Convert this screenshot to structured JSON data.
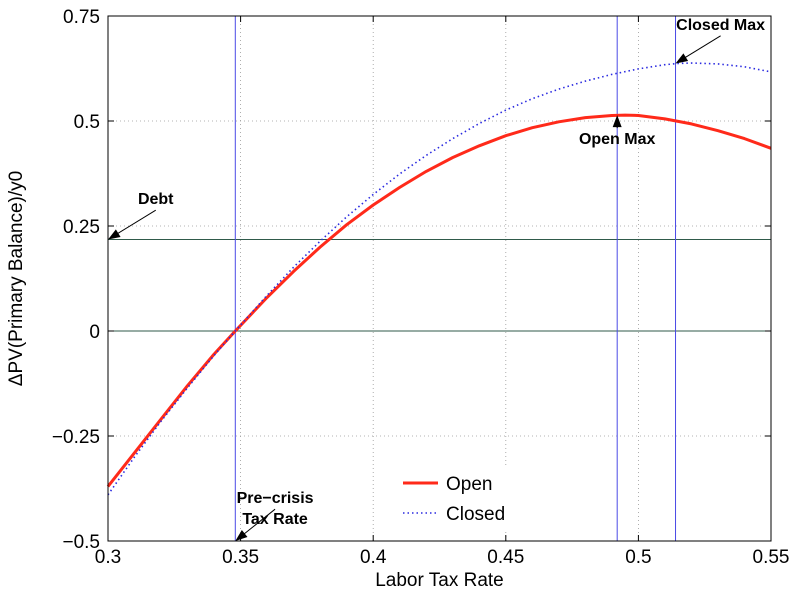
{
  "chart_data": {
    "type": "line",
    "xlabel": "Labor Tax Rate",
    "ylabel": "ΔPV(Primary Balance)/y0",
    "xlim": [
      0.3,
      0.55
    ],
    "ylim": [
      -0.5,
      0.75
    ],
    "xticks": [
      0.3,
      0.35,
      0.4,
      0.45,
      0.5,
      0.55
    ],
    "xtick_labels": [
      "0.3",
      "0.35",
      "0.4",
      "0.45",
      "0.5",
      "0.55"
    ],
    "yticks": [
      -0.5,
      -0.25,
      0,
      0.25,
      0.5,
      0.75
    ],
    "ytick_labels": [
      "−0.5",
      "−0.25",
      "0",
      "0.25",
      "0.5",
      "0.75"
    ],
    "grid": true,
    "legend_position": "bottom-center",
    "series": [
      {
        "name": "Open",
        "color": "#ff2a1a",
        "style": "solid",
        "x": [
          0.3,
          0.31,
          0.32,
          0.33,
          0.34,
          0.348,
          0.36,
          0.37,
          0.38,
          0.39,
          0.4,
          0.41,
          0.42,
          0.43,
          0.44,
          0.45,
          0.46,
          0.47,
          0.48,
          0.49,
          0.495,
          0.5,
          0.51,
          0.52,
          0.53,
          0.54,
          0.55
        ],
        "y": [
          -0.37,
          -0.29,
          -0.21,
          -0.13,
          -0.055,
          0.0,
          0.08,
          0.142,
          0.2,
          0.253,
          0.3,
          0.342,
          0.38,
          0.413,
          0.441,
          0.465,
          0.484,
          0.498,
          0.508,
          0.513,
          0.514,
          0.513,
          0.505,
          0.493,
          0.477,
          0.458,
          0.435
        ]
      },
      {
        "name": "Closed",
        "color": "#2a2ae0",
        "style": "dotted",
        "x": [
          0.3,
          0.31,
          0.32,
          0.33,
          0.34,
          0.348,
          0.36,
          0.37,
          0.38,
          0.39,
          0.4,
          0.41,
          0.42,
          0.43,
          0.44,
          0.45,
          0.46,
          0.47,
          0.48,
          0.49,
          0.5,
          0.51,
          0.515,
          0.52,
          0.53,
          0.54,
          0.55
        ],
        "y": [
          -0.39,
          -0.3,
          -0.215,
          -0.135,
          -0.058,
          0.0,
          0.085,
          0.152,
          0.214,
          0.272,
          0.325,
          0.374,
          0.418,
          0.458,
          0.494,
          0.526,
          0.553,
          0.576,
          0.595,
          0.611,
          0.624,
          0.634,
          0.637,
          0.638,
          0.636,
          0.629,
          0.617
        ]
      }
    ],
    "hlines": [
      {
        "y": 0.218,
        "color": "#2f5a4a"
      },
      {
        "y": 0.0,
        "color": "#2f5a4a"
      }
    ],
    "vlines": [
      {
        "x": 0.348,
        "color": "#4a4ae6"
      },
      {
        "x": 0.492,
        "color": "#4a4ae6"
      },
      {
        "x": 0.514,
        "color": "#4a4ae6"
      }
    ],
    "annotations": [
      {
        "text": "Closed Max",
        "point": [
          0.514,
          0.637
        ],
        "text_at": [
          0.531,
          0.717
        ]
      },
      {
        "text": "Open Max",
        "point": [
          0.492,
          0.514
        ],
        "text_at": [
          0.492,
          0.445
        ]
      },
      {
        "text": "Debt",
        "point": [
          0.3,
          0.218
        ],
        "text_at": [
          0.318,
          0.302
        ]
      },
      {
        "text": "Pre−crisis",
        "point": [
          0.348,
          -0.5
        ],
        "text_at": [
          0.363,
          -0.41
        ]
      },
      {
        "text": "Tax Rate",
        "point": null,
        "text_at": [
          0.363,
          -0.46
        ]
      }
    ]
  }
}
